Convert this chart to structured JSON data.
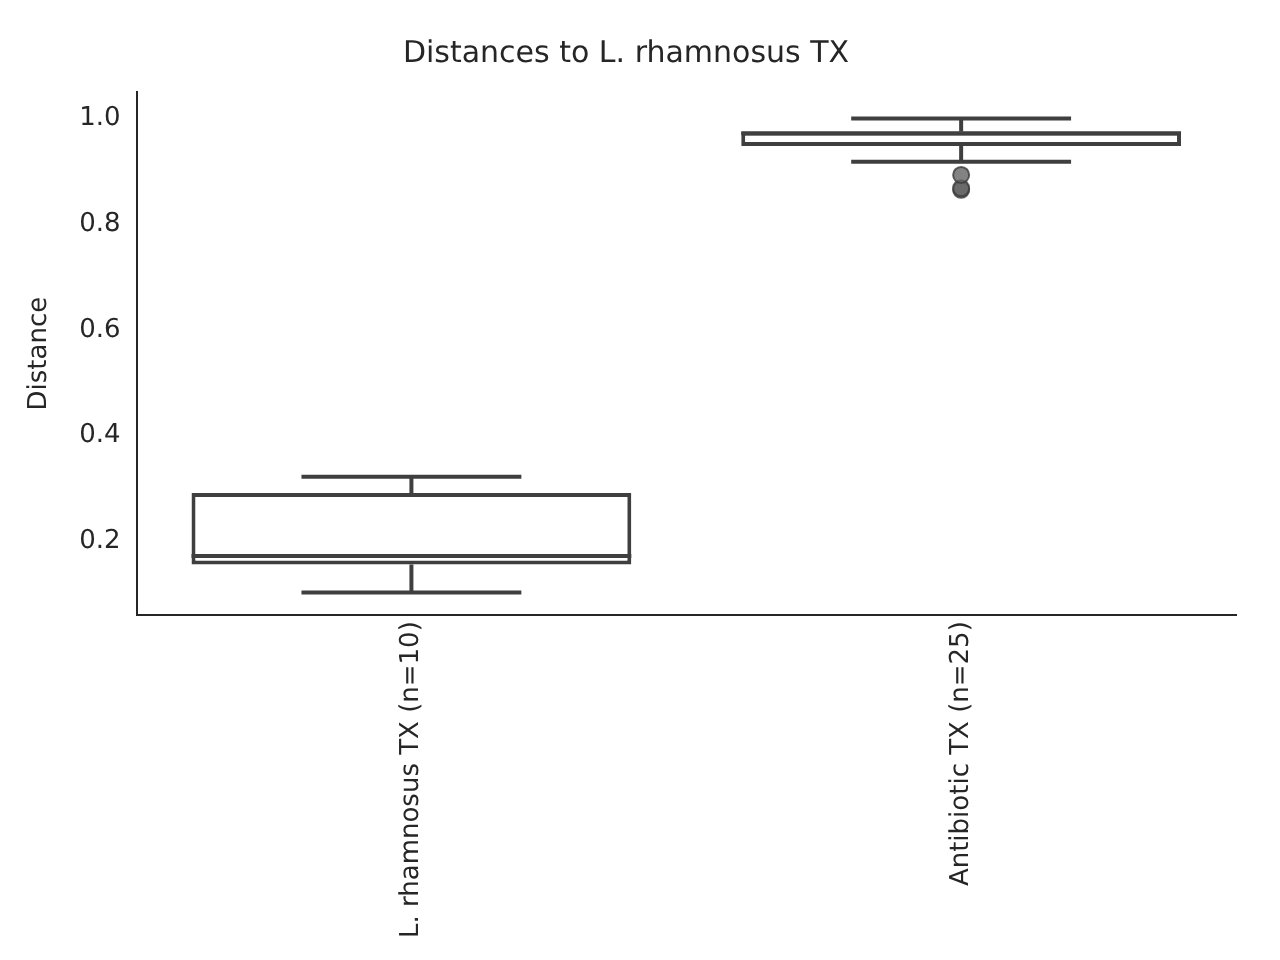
{
  "chart_data": {
    "type": "box",
    "title": "Distances to L. rhamnosus TX",
    "ylabel": "Distance",
    "categories": [
      "L. rhamnosus TX (n=10)",
      "Antibiotic TX (n=25)"
    ],
    "boxes": [
      {
        "low": 0.103,
        "q1": 0.156,
        "median": 0.172,
        "q3": 0.291,
        "high": 0.322
      },
      {
        "low": 0.918,
        "q1": 0.948,
        "median": 0.972,
        "q3": 0.975,
        "high": 1.0,
        "outliers": [
          0.893,
          0.868,
          0.865
        ]
      }
    ],
    "color": "#3f3f3f",
    "ylim": [
      0.06,
      1.05
    ],
    "yticks": [
      0.2,
      0.4,
      0.6,
      0.8,
      {
        "value": 1,
        "label": "1.0"
      }
    ],
    "grid": false,
    "legend": false
  }
}
